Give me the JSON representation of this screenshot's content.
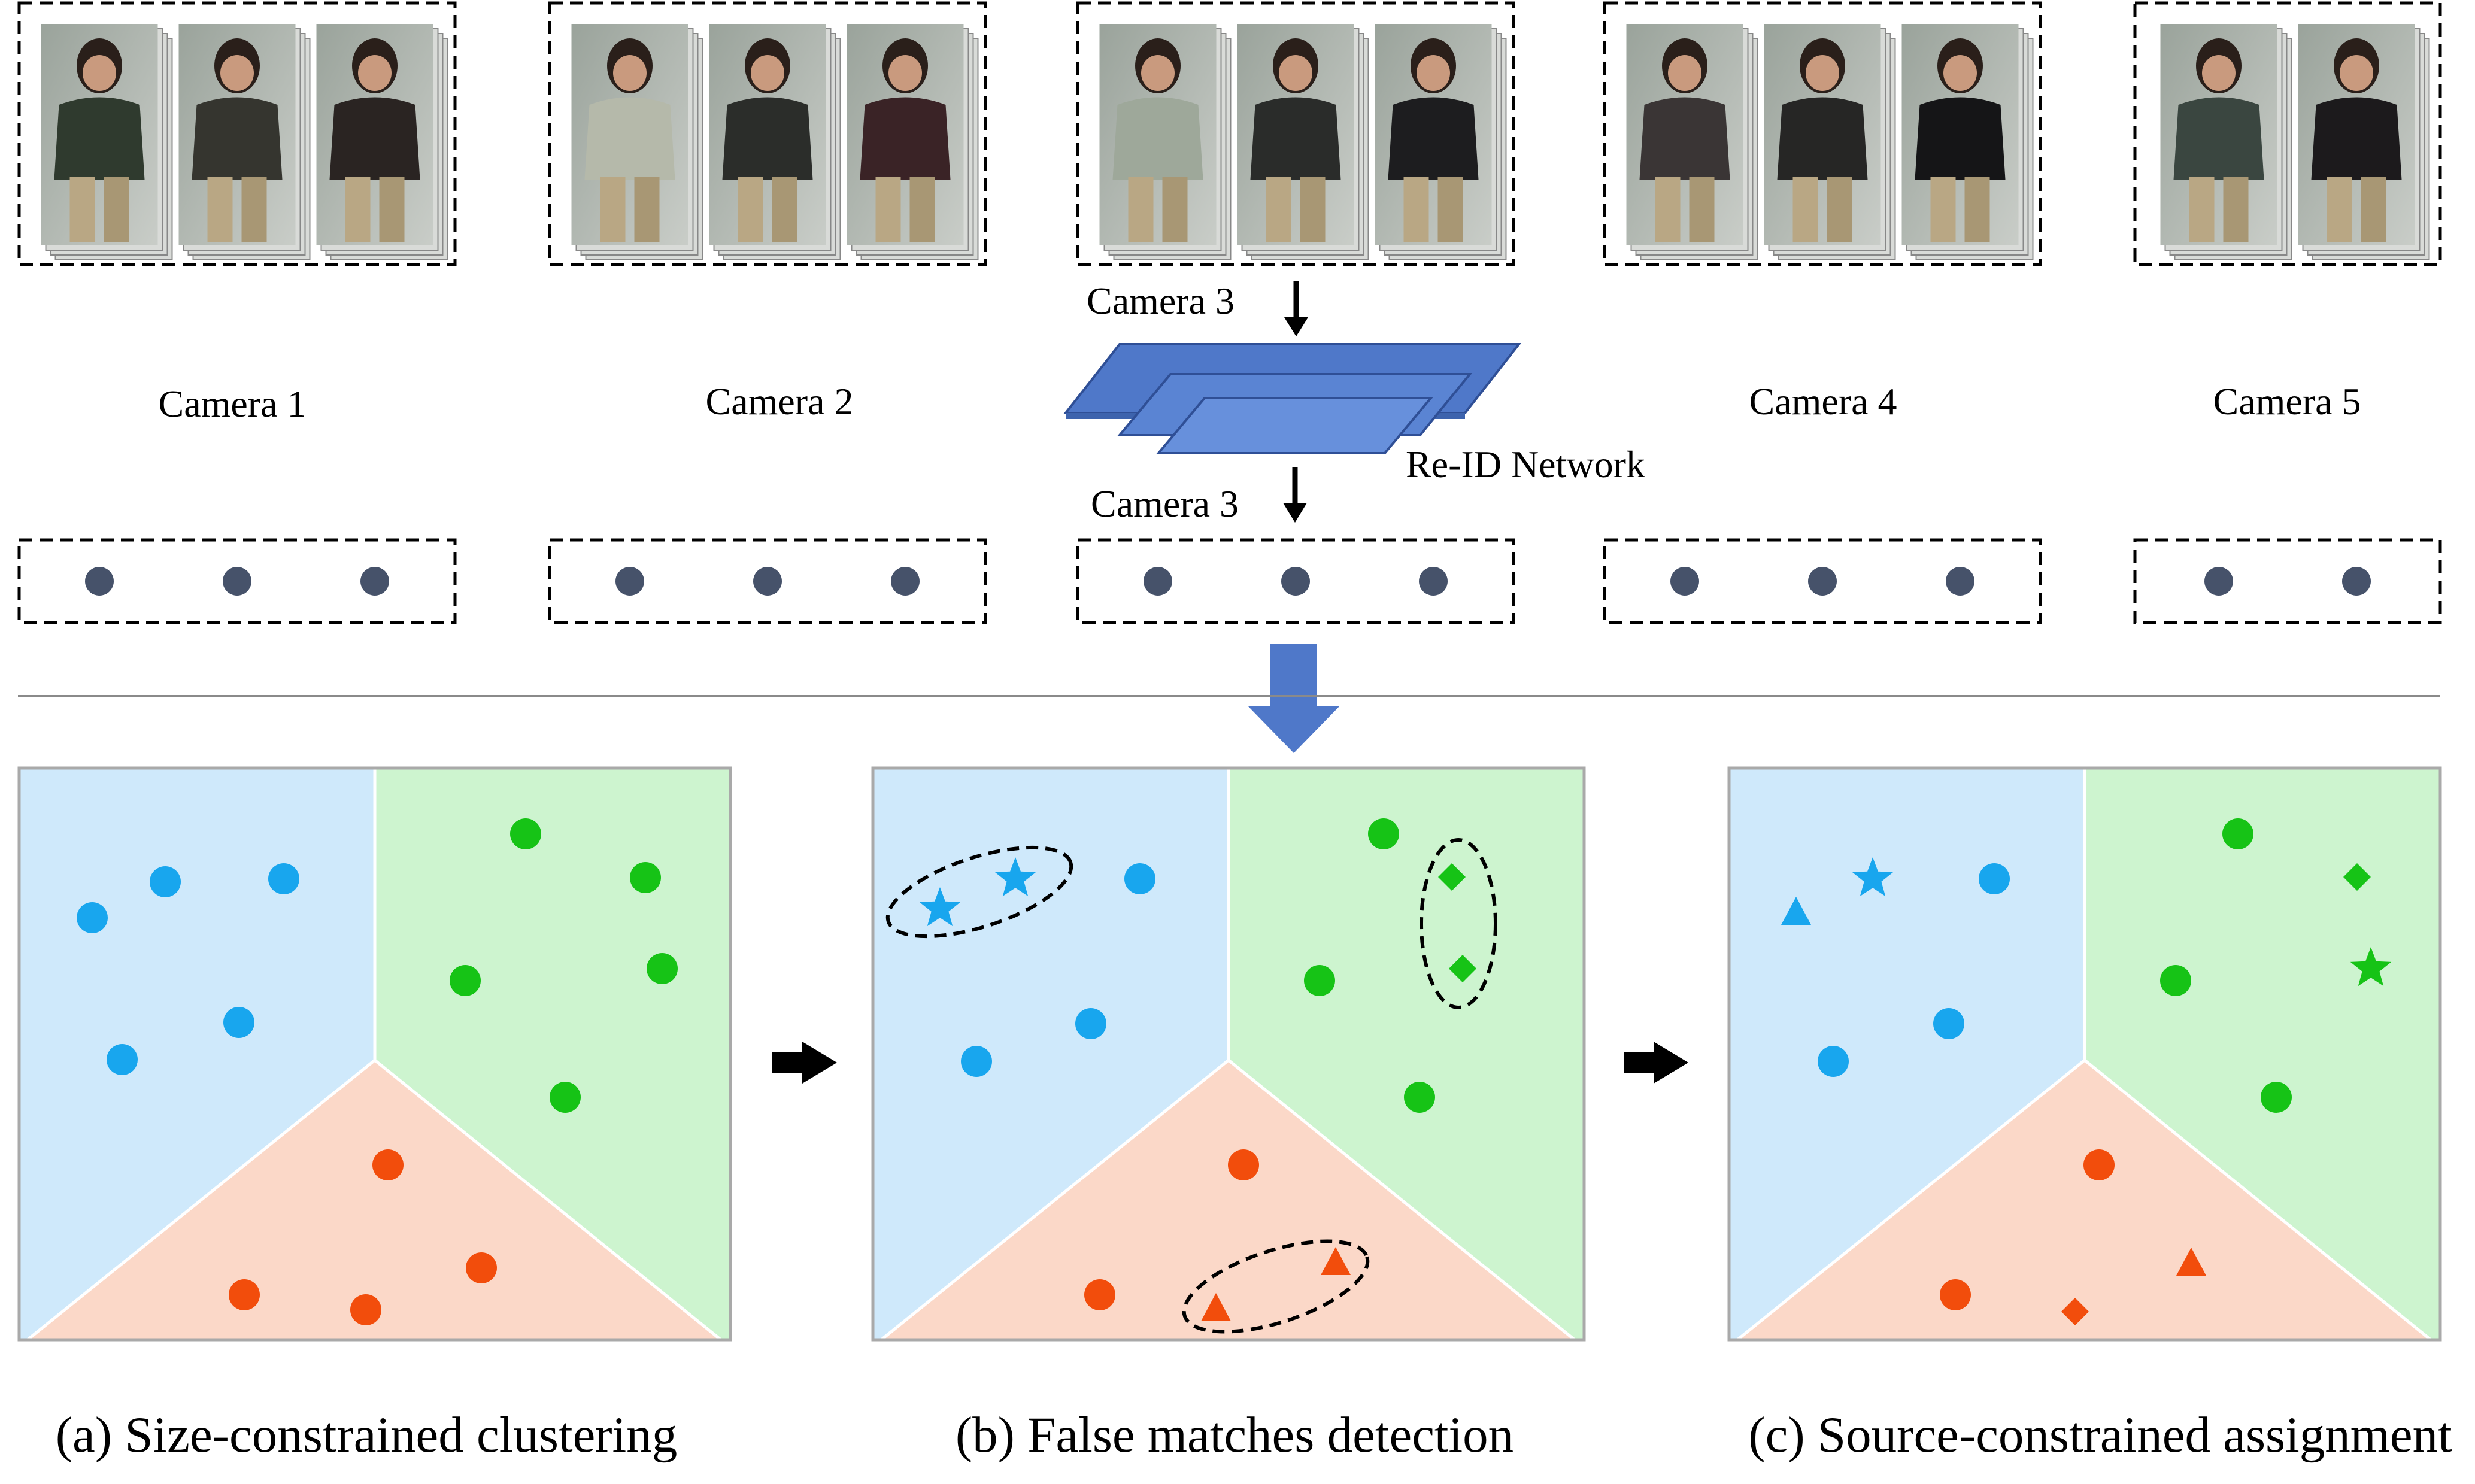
{
  "cameras": [
    {
      "label": "Camera 1",
      "images": 3
    },
    {
      "label": "Camera 2",
      "images": 3
    },
    {
      "label": "Camera 3",
      "images": 3
    },
    {
      "label": "Camera 4",
      "images": 3
    },
    {
      "label": "Camera 5",
      "images": 2
    }
  ],
  "network": {
    "label": "Re-ID Network",
    "input_label": "Camera 3",
    "output_label": "Camera 3",
    "color": "#4f78c9"
  },
  "colors": {
    "blue_region": "#cfe9fb",
    "green_region": "#cdf4cf",
    "red_region": "#fbd8c8",
    "blue_point": "#18a6ee",
    "green_point": "#16c316",
    "red_point": "#f24d0c",
    "feature_dot": "#46526a"
  },
  "panels": [
    {
      "caption": "(a) Size-constrained clustering"
    },
    {
      "caption": "(b) False matches detection"
    },
    {
      "caption": "(c) Source-constrained assignment"
    }
  ]
}
